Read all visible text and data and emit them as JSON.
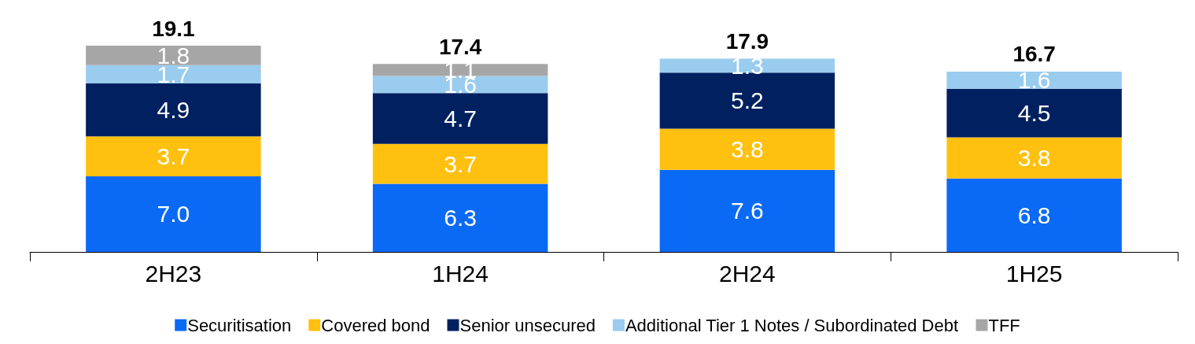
{
  "chart_data": {
    "type": "bar",
    "stacked": true,
    "categories": [
      "2H23",
      "1H24",
      "2H24",
      "1H25"
    ],
    "series": [
      {
        "name": "Securitisation",
        "color": "#0a6af5",
        "values": [
          7.0,
          6.3,
          7.6,
          6.8
        ],
        "value_labels": [
          "7.0",
          "6.3",
          "7.6",
          "6.8"
        ]
      },
      {
        "name": "Covered bond",
        "color": "#ffc010",
        "values": [
          3.7,
          3.7,
          3.8,
          3.8
        ],
        "value_labels": [
          "3.7",
          "3.7",
          "3.8",
          "3.8"
        ]
      },
      {
        "name": "Senior unsecured",
        "color": "#002060",
        "values": [
          4.9,
          4.7,
          5.2,
          4.5
        ],
        "value_labels": [
          "4.9",
          "4.7",
          "5.2",
          "4.5"
        ]
      },
      {
        "name": "Additional Tier 1 Notes / Subordinated Debt",
        "color": "#99ccee",
        "values": [
          1.7,
          1.6,
          1.3,
          1.6
        ],
        "value_labels": [
          "1.7",
          "1.6",
          "1.3",
          "1.6"
        ]
      },
      {
        "name": "TFF",
        "color": "#a6a6a6",
        "values": [
          1.8,
          1.1,
          null,
          null
        ],
        "value_labels": [
          "1.8",
          "1.1",
          null,
          null
        ]
      }
    ],
    "totals": [
      "19.1",
      "17.4",
      "17.9",
      "16.7"
    ],
    "legend": "bottom"
  }
}
